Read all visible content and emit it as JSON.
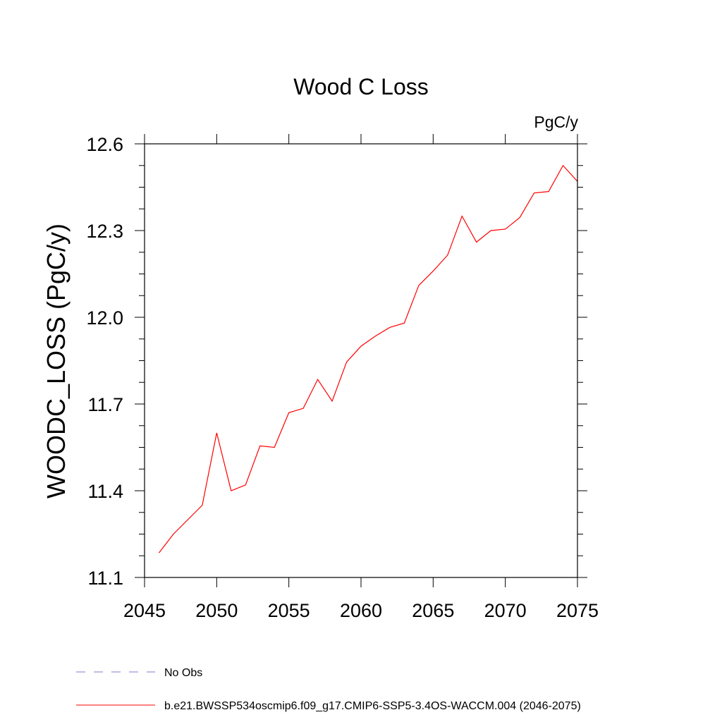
{
  "chart_data": {
    "type": "line",
    "title": "Wood C Loss",
    "units_label": "PgC/y",
    "ylabel": "WOODC_LOSS  (PgC/y)",
    "xlabel": "",
    "xlim": [
      2045,
      2075
    ],
    "ylim": [
      11.1,
      12.6
    ],
    "xticks": [
      2045,
      2050,
      2055,
      2060,
      2065,
      2070,
      2075
    ],
    "xtick_labels": [
      "2045",
      "2050",
      "2055",
      "2060",
      "2065",
      "2070",
      "2075"
    ],
    "yticks": [
      11.1,
      11.4,
      11.7,
      12.0,
      12.3,
      12.6
    ],
    "ytick_labels": [
      "11.1",
      "11.4",
      "11.7",
      "12.0",
      "12.3",
      "12.6"
    ],
    "grid": false,
    "legend_position": "bottom-left",
    "series": [
      {
        "name": "b.e21.BWSSP534oscmip6.f09_g17.CMIP6-SSP5-3.4OS-WACCM.004 (2046-2075)",
        "color": "#ff0000",
        "line_style": "solid",
        "x": [
          2046,
          2047,
          2048,
          2049,
          2050,
          2051,
          2052,
          2053,
          2054,
          2055,
          2056,
          2057,
          2058,
          2059,
          2060,
          2061,
          2062,
          2063,
          2064,
          2065,
          2066,
          2067,
          2068,
          2069,
          2070,
          2071,
          2072,
          2073,
          2074,
          2075
        ],
        "y": [
          11.185,
          11.25,
          11.3,
          11.35,
          11.6,
          11.4,
          11.42,
          11.555,
          11.55,
          11.67,
          11.685,
          11.785,
          11.71,
          11.845,
          11.9,
          11.935,
          11.965,
          11.98,
          12.11,
          12.16,
          12.215,
          12.35,
          12.26,
          12.3,
          12.305,
          12.345,
          12.43,
          12.435,
          12.525,
          12.47
        ]
      },
      {
        "name": "No Obs",
        "color": "#8877cc",
        "line_style": "dashed",
        "x": [],
        "y": []
      }
    ]
  }
}
